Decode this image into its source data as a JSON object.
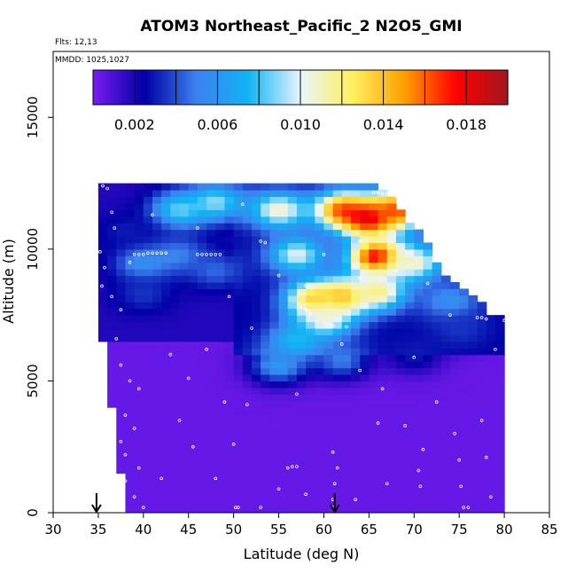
{
  "chart_data": {
    "type": "heatmap",
    "title": "ATOM3 Northeast_Pacific_2 N2O5_GMI",
    "notes": {
      "flights": "Flts: 12,13",
      "dates": "MMDD: 1025,1027"
    },
    "xlabel": "Latitude (deg N)",
    "ylabel": "Altitude (m)",
    "xlim": [
      30,
      85
    ],
    "ylim": [
      0,
      17500
    ],
    "x_ticks": [
      30,
      35,
      40,
      45,
      50,
      55,
      60,
      65,
      70,
      75,
      80,
      85
    ],
    "y_ticks": [
      0,
      5000,
      10000,
      15000
    ],
    "x_tick_labels": [
      "30",
      "35",
      "40",
      "45",
      "50",
      "55",
      "60",
      "65",
      "70",
      "75",
      "80",
      "85"
    ],
    "y_tick_labels": [
      "0",
      "5000",
      "10000",
      "15000"
    ],
    "colorbar": {
      "range": [
        0,
        0.02
      ],
      "ticks": [
        0.002,
        0.006,
        0.01,
        0.014,
        0.018
      ],
      "tick_labels": [
        "0.002",
        "0.006",
        "0.010",
        "0.014",
        "0.018"
      ],
      "colors": [
        "#7a1cf2",
        "#0000a6",
        "#3c82f0",
        "#10b4f4",
        "#e8f4ff",
        "#fff060",
        "#ffa000",
        "#ff0000",
        "#a01820"
      ]
    },
    "markers": {
      "latitudes": [
        34.8,
        61.2
      ],
      "symbol": "down-arrow"
    },
    "column_extents": [
      {
        "lat": 35.5,
        "top": 12500
      },
      {
        "lat": 36.5,
        "top": 12500
      },
      {
        "lat": 37.5,
        "top": 12500
      },
      {
        "lat": 38.5,
        "top": 12500
      },
      {
        "lat": 39.5,
        "top": 12500
      },
      {
        "lat": 40.5,
        "top": 12500
      },
      {
        "lat": 41.5,
        "top": 12500
      },
      {
        "lat": 42.5,
        "top": 12500
      },
      {
        "lat": 43.5,
        "top": 12500
      },
      {
        "lat": 44.5,
        "top": 12500
      },
      {
        "lat": 45.5,
        "top": 12500
      },
      {
        "lat": 46.5,
        "top": 12500
      },
      {
        "lat": 47.5,
        "top": 12500
      },
      {
        "lat": 48.5,
        "top": 12500
      },
      {
        "lat": 49.5,
        "top": 12500
      },
      {
        "lat": 50.5,
        "top": 12500
      },
      {
        "lat": 51.5,
        "top": 12500
      },
      {
        "lat": 52.5,
        "top": 12500
      },
      {
        "lat": 53.5,
        "top": 12500
      },
      {
        "lat": 54.5,
        "top": 12500
      },
      {
        "lat": 55.5,
        "top": 12500
      },
      {
        "lat": 56.5,
        "top": 12500
      },
      {
        "lat": 57.5,
        "top": 12500
      },
      {
        "lat": 58.5,
        "top": 12500
      },
      {
        "lat": 59.5,
        "top": 12500
      },
      {
        "lat": 60.5,
        "top": 12500
      },
      {
        "lat": 61.5,
        "top": 12500
      },
      {
        "lat": 62.5,
        "top": 12500
      },
      {
        "lat": 63.5,
        "top": 12500
      },
      {
        "lat": 64.5,
        "top": 12400
      },
      {
        "lat": 65.5,
        "top": 12300
      },
      {
        "lat": 66.5,
        "top": 12200
      },
      {
        "lat": 67.5,
        "top": 11800
      },
      {
        "lat": 68.5,
        "top": 11400
      },
      {
        "lat": 69.5,
        "top": 11000
      },
      {
        "lat": 70.5,
        "top": 10600
      },
      {
        "lat": 71.5,
        "top": 10100
      },
      {
        "lat": 72.5,
        "top": 9500
      },
      {
        "lat": 73.5,
        "top": 9000
      },
      {
        "lat": 74.5,
        "top": 8700
      },
      {
        "lat": 75.5,
        "top": 8400
      },
      {
        "lat": 76.5,
        "top": 8100
      },
      {
        "lat": 77.5,
        "top": 7800
      },
      {
        "lat": 78.5,
        "top": 7500
      },
      {
        "lat": 79.5,
        "top": 7300
      }
    ],
    "left_edge": [
      {
        "alt": 0,
        "lat": 38.5
      },
      {
        "alt": 1000,
        "lat": 38.2
      },
      {
        "alt": 2000,
        "lat": 37.7
      },
      {
        "alt": 3000,
        "lat": 37.2
      },
      {
        "alt": 4000,
        "lat": 37.0
      },
      {
        "alt": 5000,
        "lat": 36.6
      },
      {
        "alt": 6000,
        "lat": 36.2
      },
      {
        "alt": 7000,
        "lat": 35.8
      },
      {
        "alt": 8000,
        "lat": 35.2
      },
      {
        "alt": 9000,
        "lat": 35.0
      },
      {
        "alt": 10000,
        "lat": 34.9
      },
      {
        "alt": 11000,
        "lat": 35.3
      },
      {
        "alt": 12000,
        "lat": 35.6
      },
      {
        "alt": 12500,
        "lat": 35.6
      }
    ],
    "right_edge": [
      {
        "alt": 0,
        "lat": 79.0
      },
      {
        "alt": 2000,
        "lat": 79.4
      },
      {
        "alt": 4000,
        "lat": 79.6
      },
      {
        "alt": 5000,
        "lat": 80.0
      },
      {
        "alt": 7300,
        "lat": 80.0
      }
    ],
    "features": [
      {
        "lat": 44,
        "alt": 11500,
        "value": 0.0085
      },
      {
        "lat": 48,
        "alt": 11800,
        "value": 0.009
      },
      {
        "lat": 55,
        "alt": 11500,
        "value": 0.011
      },
      {
        "lat": 62,
        "alt": 11500,
        "value": 0.0155
      },
      {
        "lat": 65,
        "alt": 11200,
        "value": 0.019
      },
      {
        "lat": 68,
        "alt": 11500,
        "value": 0.0165
      },
      {
        "lat": 66,
        "alt": 9700,
        "value": 0.019
      },
      {
        "lat": 62,
        "alt": 8200,
        "value": 0.015
      },
      {
        "lat": 59,
        "alt": 8100,
        "value": 0.014
      },
      {
        "lat": 60,
        "alt": 7300,
        "value": 0.011
      },
      {
        "lat": 66,
        "alt": 8400,
        "value": 0.012
      },
      {
        "lat": 70,
        "alt": 9500,
        "value": 0.011
      },
      {
        "lat": 57,
        "alt": 9800,
        "value": 0.01
      },
      {
        "lat": 57,
        "alt": 6500,
        "value": 0.008
      },
      {
        "lat": 55,
        "alt": 5600,
        "value": 0.006
      },
      {
        "lat": 62,
        "alt": 5800,
        "value": 0.005
      },
      {
        "lat": 44,
        "alt": 9800,
        "value": 0.005
      },
      {
        "lat": 40,
        "alt": 9500,
        "value": 0.006
      },
      {
        "lat": 48,
        "alt": 9200,
        "value": 0.0045
      },
      {
        "lat": 38,
        "alt": 10700,
        "value": 0.003
      },
      {
        "lat": 40,
        "alt": 8300,
        "value": 0.0035
      },
      {
        "lat": 74,
        "alt": 8000,
        "value": 0.006
      },
      {
        "lat": 75,
        "alt": 7000,
        "value": 0.0035
      },
      {
        "lat": 70,
        "alt": 6000,
        "value": 0.003
      }
    ],
    "sample_points": [
      {
        "lat": 35.5,
        "alt": 12400
      },
      {
        "lat": 36.0,
        "alt": 12300
      },
      {
        "lat": 36.5,
        "alt": 11400
      },
      {
        "lat": 36.8,
        "alt": 10800
      },
      {
        "lat": 35.2,
        "alt": 9900
      },
      {
        "lat": 35.7,
        "alt": 9300
      },
      {
        "lat": 35.4,
        "alt": 8600
      },
      {
        "lat": 36.5,
        "alt": 8200
      },
      {
        "lat": 37.5,
        "alt": 7700
      },
      {
        "lat": 38.5,
        "alt": 9500
      },
      {
        "lat": 39.0,
        "alt": 9800
      },
      {
        "lat": 39.5,
        "alt": 9800
      },
      {
        "lat": 40.0,
        "alt": 9800
      },
      {
        "lat": 40.5,
        "alt": 9850
      },
      {
        "lat": 41.0,
        "alt": 9850
      },
      {
        "lat": 41.5,
        "alt": 9850
      },
      {
        "lat": 42.0,
        "alt": 9850
      },
      {
        "lat": 42.5,
        "alt": 9850
      },
      {
        "lat": 46.0,
        "alt": 9800
      },
      {
        "lat": 46.5,
        "alt": 9800
      },
      {
        "lat": 47.0,
        "alt": 9800
      },
      {
        "lat": 47.5,
        "alt": 9800
      },
      {
        "lat": 48.0,
        "alt": 9800
      },
      {
        "lat": 48.5,
        "alt": 9800
      },
      {
        "lat": 53.0,
        "alt": 10300
      },
      {
        "lat": 53.5,
        "alt": 10250
      },
      {
        "lat": 65.5,
        "alt": 12150
      },
      {
        "lat": 66.0,
        "alt": 12150
      },
      {
        "lat": 66.5,
        "alt": 12100
      },
      {
        "lat": 67.0,
        "alt": 12100
      },
      {
        "lat": 67.5,
        "alt": 12050
      },
      {
        "lat": 68.0,
        "alt": 12000
      },
      {
        "lat": 68.5,
        "alt": 12000
      },
      {
        "lat": 69.0,
        "alt": 12000
      },
      {
        "lat": 69.5,
        "alt": 12000
      },
      {
        "lat": 70.0,
        "alt": 11700
      },
      {
        "lat": 72.5,
        "alt": 10300
      },
      {
        "lat": 73.0,
        "alt": 10300
      },
      {
        "lat": 57.5,
        "alt": 7800
      },
      {
        "lat": 58.0,
        "alt": 7700
      },
      {
        "lat": 58.5,
        "alt": 7550
      },
      {
        "lat": 61.0,
        "alt": 7100
      },
      {
        "lat": 62.5,
        "alt": 7050
      },
      {
        "lat": 77.0,
        "alt": 7400
      },
      {
        "lat": 77.5,
        "alt": 7400
      },
      {
        "lat": 78.0,
        "alt": 7350
      },
      {
        "lat": 80.0,
        "alt": 7300
      },
      {
        "lat": 79.0,
        "alt": 6200
      },
      {
        "lat": 37.0,
        "alt": 6600
      },
      {
        "lat": 37.5,
        "alt": 5600
      },
      {
        "lat": 38.5,
        "alt": 5000
      },
      {
        "lat": 39.5,
        "alt": 4700
      },
      {
        "lat": 38.0,
        "alt": 3700
      },
      {
        "lat": 39.0,
        "alt": 3200
      },
      {
        "lat": 37.5,
        "alt": 2700
      },
      {
        "lat": 38.0,
        "alt": 2200
      },
      {
        "lat": 39.5,
        "alt": 1700
      },
      {
        "lat": 38.0,
        "alt": 1200
      },
      {
        "lat": 39.0,
        "alt": 600
      },
      {
        "lat": 40.0,
        "alt": 200
      },
      {
        "lat": 44.0,
        "alt": 3500
      },
      {
        "lat": 45.0,
        "alt": 5100
      },
      {
        "lat": 49.0,
        "alt": 4200
      },
      {
        "lat": 48.0,
        "alt": 1300
      },
      {
        "lat": 50.0,
        "alt": 2600
      },
      {
        "lat": 50.5,
        "alt": 200
      },
      {
        "lat": 50.2,
        "alt": 200
      },
      {
        "lat": 51.5,
        "alt": 4100
      },
      {
        "lat": 56.0,
        "alt": 1700
      },
      {
        "lat": 56.5,
        "alt": 1750
      },
      {
        "lat": 57.0,
        "alt": 1750
      },
      {
        "lat": 55.0,
        "alt": 900
      },
      {
        "lat": 58.0,
        "alt": 700
      },
      {
        "lat": 61.0,
        "alt": 2300
      },
      {
        "lat": 61.5,
        "alt": 1700
      },
      {
        "lat": 61.2,
        "alt": 1100
      },
      {
        "lat": 61.0,
        "alt": 500
      },
      {
        "lat": 61.0,
        "alt": 200
      },
      {
        "lat": 62.0,
        "alt": 6400
      },
      {
        "lat": 64.0,
        "alt": 5400
      },
      {
        "lat": 66.5,
        "alt": 4700
      },
      {
        "lat": 69.0,
        "alt": 3300
      },
      {
        "lat": 71.0,
        "alt": 2400
      },
      {
        "lat": 70.5,
        "alt": 1600
      },
      {
        "lat": 70.7,
        "alt": 1000
      },
      {
        "lat": 72.5,
        "alt": 4200
      },
      {
        "lat": 74.5,
        "alt": 3000
      },
      {
        "lat": 75.0,
        "alt": 2000
      },
      {
        "lat": 75.2,
        "alt": 1000
      },
      {
        "lat": 75.5,
        "alt": 200
      },
      {
        "lat": 76.0,
        "alt": 200
      },
      {
        "lat": 77.5,
        "alt": 3500
      },
      {
        "lat": 78.0,
        "alt": 2100
      },
      {
        "lat": 78.5,
        "alt": 600
      },
      {
        "lat": 43.0,
        "alt": 6000
      },
      {
        "lat": 47.0,
        "alt": 6200
      },
      {
        "lat": 49.5,
        "alt": 8200
      },
      {
        "lat": 52.0,
        "alt": 7000
      },
      {
        "lat": 55.0,
        "alt": 9000
      },
      {
        "lat": 60.0,
        "alt": 9800
      },
      {
        "lat": 64.0,
        "alt": 10300
      },
      {
        "lat": 46.0,
        "alt": 10800
      },
      {
        "lat": 41.0,
        "alt": 11300
      },
      {
        "lat": 51.0,
        "alt": 11700
      },
      {
        "lat": 58.0,
        "alt": 8600
      },
      {
        "lat": 64.0,
        "alt": 8900
      },
      {
        "lat": 68.0,
        "alt": 9200
      },
      {
        "lat": 71.5,
        "alt": 8700
      },
      {
        "lat": 74.0,
        "alt": 7500
      },
      {
        "lat": 70.0,
        "alt": 5900
      },
      {
        "lat": 66.0,
        "alt": 3400
      },
      {
        "lat": 42.0,
        "alt": 1300
      },
      {
        "lat": 45.5,
        "alt": 2500
      },
      {
        "lat": 53.0,
        "alt": 200
      },
      {
        "lat": 57.0,
        "alt": 4500
      },
      {
        "lat": 63.5,
        "alt": 500
      },
      {
        "lat": 67.0,
        "alt": 1100
      }
    ]
  }
}
